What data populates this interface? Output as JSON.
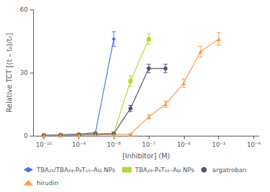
{
  "chart_data": {
    "type": "line",
    "xlabel": "[Inhibitor] (M)",
    "ylabel": "Relative TCT [(t – t₀)/t₀]",
    "log": "x",
    "xlim": [
      5.011872336272722e-11,
      0.00014125375446227554
    ],
    "xticks": [
      {
        "value": 1e-10,
        "label": "10⁻¹⁰"
      },
      {
        "value": 1e-09,
        "label": "10⁻⁹"
      },
      {
        "value": 1e-08,
        "label": "10⁻⁸"
      },
      {
        "value": 1e-07,
        "label": "10⁻⁷"
      },
      {
        "value": 1e-06,
        "label": "10⁻⁶"
      },
      {
        "value": 1e-05,
        "label": "10⁻⁵"
      },
      {
        "value": 0.0001,
        "label": "10⁻⁴"
      }
    ],
    "ylim": [
      0,
      60
    ],
    "yticks": [
      0,
      30,
      60
    ],
    "grid": false,
    "legend": "bottom",
    "series": [
      {
        "name": "TBA₁₅/TBA₂₉-P₈T₁₅–Au NPs",
        "marker": "diamond",
        "x": [
          1e-10,
          3e-10,
          1e-09,
          3e-09,
          1e-08
        ],
        "values": [
          0.3,
          0.5,
          0.8,
          1.5,
          46
        ],
        "yerr": [
          0.1,
          0.1,
          0.2,
          0.3,
          3.5
        ]
      },
      {
        "name": "TBA₂₉-P₄T₁₅–Au NPs",
        "marker": "square",
        "x": [
          1e-10,
          3e-10,
          1e-09,
          3e-09,
          1e-08,
          3e-08,
          1e-07
        ],
        "values": [
          0.2,
          0.3,
          0.5,
          0.8,
          1.2,
          26,
          46
        ],
        "yerr": [
          0.1,
          0.1,
          0.1,
          0.1,
          0.2,
          2.5,
          2.5
        ]
      },
      {
        "name": "argatroban",
        "marker": "circle",
        "x": [
          1e-10,
          3e-10,
          1e-09,
          3e-09,
          1e-08,
          3e-08,
          1e-07,
          3e-07
        ],
        "values": [
          0.2,
          0.3,
          0.5,
          0.8,
          1.0,
          13,
          32,
          32
        ],
        "yerr": [
          0.1,
          0.1,
          0.1,
          0.1,
          0.2,
          1.5,
          2.0,
          2.0
        ]
      },
      {
        "name": "hirudin",
        "marker": "triangle",
        "x": [
          1e-10,
          3e-10,
          1e-09,
          3e-09,
          1e-08,
          3e-08,
          1e-07,
          3e-07,
          1e-06,
          3e-06,
          1e-05
        ],
        "values": [
          0.1,
          0.2,
          0.3,
          0.4,
          0.5,
          0.8,
          9,
          15,
          25,
          40,
          46
        ],
        "yerr": [
          0.05,
          0.05,
          0.1,
          0.1,
          0.1,
          0.2,
          1.0,
          1.5,
          2.0,
          2.5,
          3.0
        ]
      }
    ]
  }
}
